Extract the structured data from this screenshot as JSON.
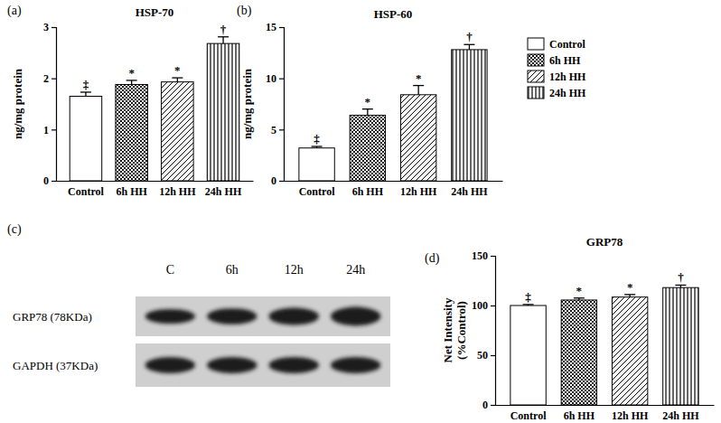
{
  "chart_data": [
    {
      "type": "bar",
      "title": "HSP-70",
      "annotations": [
        "(a)"
      ],
      "ylabel": "ng/mg protein",
      "categories": [
        "Control",
        "6h HH",
        "12h HH",
        "24h HH"
      ],
      "values": [
        1.65,
        1.88,
        1.93,
        2.68
      ],
      "errors": [
        0.08,
        0.08,
        0.08,
        0.13
      ],
      "significance": [
        "‡",
        "*",
        "*",
        "†"
      ],
      "ylim": [
        0,
        3
      ],
      "yticks": [
        0,
        1,
        2,
        3
      ]
    },
    {
      "type": "bar",
      "title": "HSP-60",
      "annotations": [
        "(b)"
      ],
      "ylabel": "ng/mg protein",
      "categories": [
        "Control",
        "6h HH",
        "12h HH",
        "24h HH"
      ],
      "values": [
        3.2,
        6.4,
        8.4,
        12.8
      ],
      "errors": [
        0.15,
        0.6,
        0.9,
        0.5
      ],
      "significance": [
        "‡",
        "*",
        "*",
        "†"
      ],
      "ylim": [
        0,
        15
      ],
      "yticks": [
        0,
        5,
        10,
        15
      ],
      "legend": "right"
    },
    {
      "type": "blot",
      "annotations": [
        "(c)"
      ],
      "categories": [
        "C",
        "6h",
        "12h",
        "24h"
      ],
      "series": [
        {
          "name": "GRP78 (78KDa)"
        },
        {
          "name": "GAPDH (37KDa)"
        }
      ]
    },
    {
      "type": "bar",
      "title": "GRP78",
      "annotations": [
        "(d)"
      ],
      "ylabel": "Net Intensity\n(%Control)",
      "categories": [
        "Control",
        "6h HH",
        "12h HH",
        "24h HH"
      ],
      "values": [
        100,
        105.5,
        108.5,
        118
      ],
      "errors": [
        1,
        2,
        2.5,
        2.5
      ],
      "significance": [
        "‡",
        "*",
        "*",
        "†"
      ],
      "ylim": [
        0,
        150
      ],
      "yticks": [
        0,
        50,
        100,
        150
      ]
    }
  ]
}
